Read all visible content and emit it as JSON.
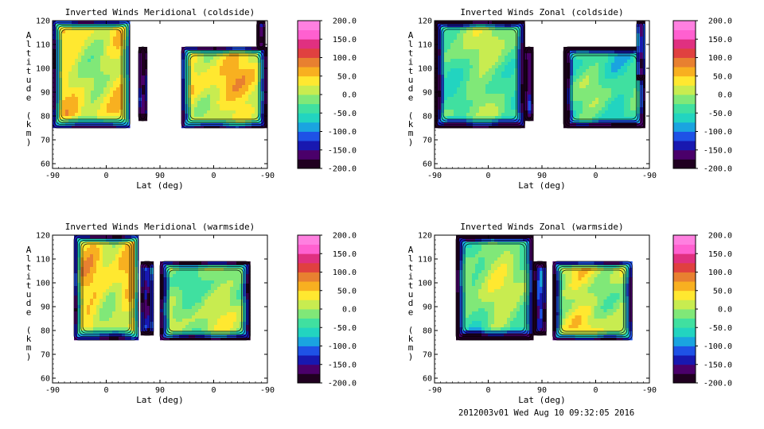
{
  "colors": {
    "colorbar_stops": [
      "#200020",
      "#4a006a",
      "#1818b0",
      "#1e52e6",
      "#1aa4e0",
      "#22d4c0",
      "#40e0a0",
      "#80e878",
      "#c8ec50",
      "#ffe830",
      "#f8b020",
      "#e88030",
      "#e04040",
      "#e03080",
      "#ff60d0",
      "#ff80e0"
    ],
    "outline": "#000000",
    "contour": "#000000"
  },
  "chart_data": [
    {
      "type": "contour",
      "title": "Inverted Winds Meridional (coldside)",
      "xlabel": "Lat (deg)",
      "ylabel": "Altitude (km)",
      "ylim": [
        58,
        120
      ],
      "x_tick_labels": [
        "-90",
        "0",
        "90",
        "0",
        "-90"
      ],
      "y_ticks": [
        60,
        70,
        80,
        90,
        100,
        110,
        120
      ],
      "colorbar_ticks": [
        "200.0",
        "150.0",
        "100.0",
        "50.0",
        "0.0",
        "-50.0",
        "-100.0",
        "-150.0",
        "-200.0"
      ],
      "colorbar_range": [
        -200,
        200
      ],
      "data_regions": [
        {
          "x_range": [
            0.0,
            0.36
          ],
          "alt_range": [
            75,
            120
          ],
          "mean_value": 10
        },
        {
          "x_range": [
            0.4,
            0.44
          ],
          "alt_range": [
            78,
            109
          ],
          "mean_value": -180
        },
        {
          "x_range": [
            0.6,
            1.0
          ],
          "alt_range": [
            75,
            109
          ],
          "mean_value": 20
        },
        {
          "x_range": [
            0.95,
            0.99
          ],
          "alt_range": [
            108,
            120
          ],
          "mean_value": -190
        }
      ]
    },
    {
      "type": "contour",
      "title": "Inverted Winds Zonal (coldside)",
      "xlabel": "Lat (deg)",
      "ylabel": "Altitude (km)",
      "ylim": [
        58,
        120
      ],
      "x_tick_labels": [
        "-90",
        "0",
        "90",
        "0",
        "-90"
      ],
      "y_ticks": [
        60,
        70,
        80,
        90,
        100,
        110,
        120
      ],
      "colorbar_ticks": [
        "200.0",
        "150.0",
        "100.0",
        "50.0",
        "0.0",
        "-50.0",
        "-100.0",
        "-150.0",
        "-200.0"
      ],
      "colorbar_range": [
        -200,
        200
      ],
      "data_regions": [
        {
          "x_range": [
            0.0,
            0.42
          ],
          "alt_range": [
            75,
            120
          ],
          "mean_value": -30
        },
        {
          "x_range": [
            0.42,
            0.46
          ],
          "alt_range": [
            78,
            109
          ],
          "mean_value": -180
        },
        {
          "x_range": [
            0.6,
            0.98
          ],
          "alt_range": [
            75,
            109
          ],
          "mean_value": -50
        },
        {
          "x_range": [
            0.94,
            0.98
          ],
          "alt_range": [
            95,
            120
          ],
          "mean_value": -150
        }
      ]
    },
    {
      "type": "contour",
      "title": "Inverted Winds Meridional (warmside)",
      "xlabel": "Lat (deg)",
      "ylabel": "Altitude (km)",
      "ylim": [
        58,
        120
      ],
      "x_tick_labels": [
        "-90",
        "0",
        "90",
        "0",
        "-90"
      ],
      "y_ticks": [
        60,
        70,
        80,
        90,
        100,
        110,
        120
      ],
      "colorbar_ticks": [
        "200.0",
        "150.0",
        "100.0",
        "50.0",
        "0.0",
        "-50.0",
        "-100.0",
        "-150.0",
        "-200.0"
      ],
      "colorbar_range": [
        -200,
        200
      ],
      "data_regions": [
        {
          "x_range": [
            0.1,
            0.4
          ],
          "alt_range": [
            76,
            120
          ],
          "mean_value": 20
        },
        {
          "x_range": [
            0.41,
            0.47
          ],
          "alt_range": [
            78,
            109
          ],
          "mean_value": -150
        },
        {
          "x_range": [
            0.5,
            0.92
          ],
          "alt_range": [
            76,
            109
          ],
          "mean_value": -20
        }
      ]
    },
    {
      "type": "contour",
      "title": "Inverted Winds Zonal (warmside)",
      "xlabel": "Lat (deg)",
      "ylabel": "Altitude (km)",
      "ylim": [
        58,
        120
      ],
      "x_tick_labels": [
        "-90",
        "0",
        "90",
        "0",
        "-90"
      ],
      "y_ticks": [
        60,
        70,
        80,
        90,
        100,
        110,
        120
      ],
      "colorbar_ticks": [
        "200.0",
        "150.0",
        "100.0",
        "50.0",
        "0.0",
        "-50.0",
        "-100.0",
        "-150.0",
        "-200.0"
      ],
      "colorbar_range": [
        -200,
        200
      ],
      "data_regions": [
        {
          "x_range": [
            0.1,
            0.46
          ],
          "alt_range": [
            76,
            120
          ],
          "mean_value": -20
        },
        {
          "x_range": [
            0.46,
            0.52
          ],
          "alt_range": [
            78,
            109
          ],
          "mean_value": -150
        },
        {
          "x_range": [
            0.55,
            0.92
          ],
          "alt_range": [
            76,
            109
          ],
          "mean_value": 0
        }
      ]
    }
  ],
  "footer": "2012003v01 Wed Aug 10 09:32:05 2016"
}
